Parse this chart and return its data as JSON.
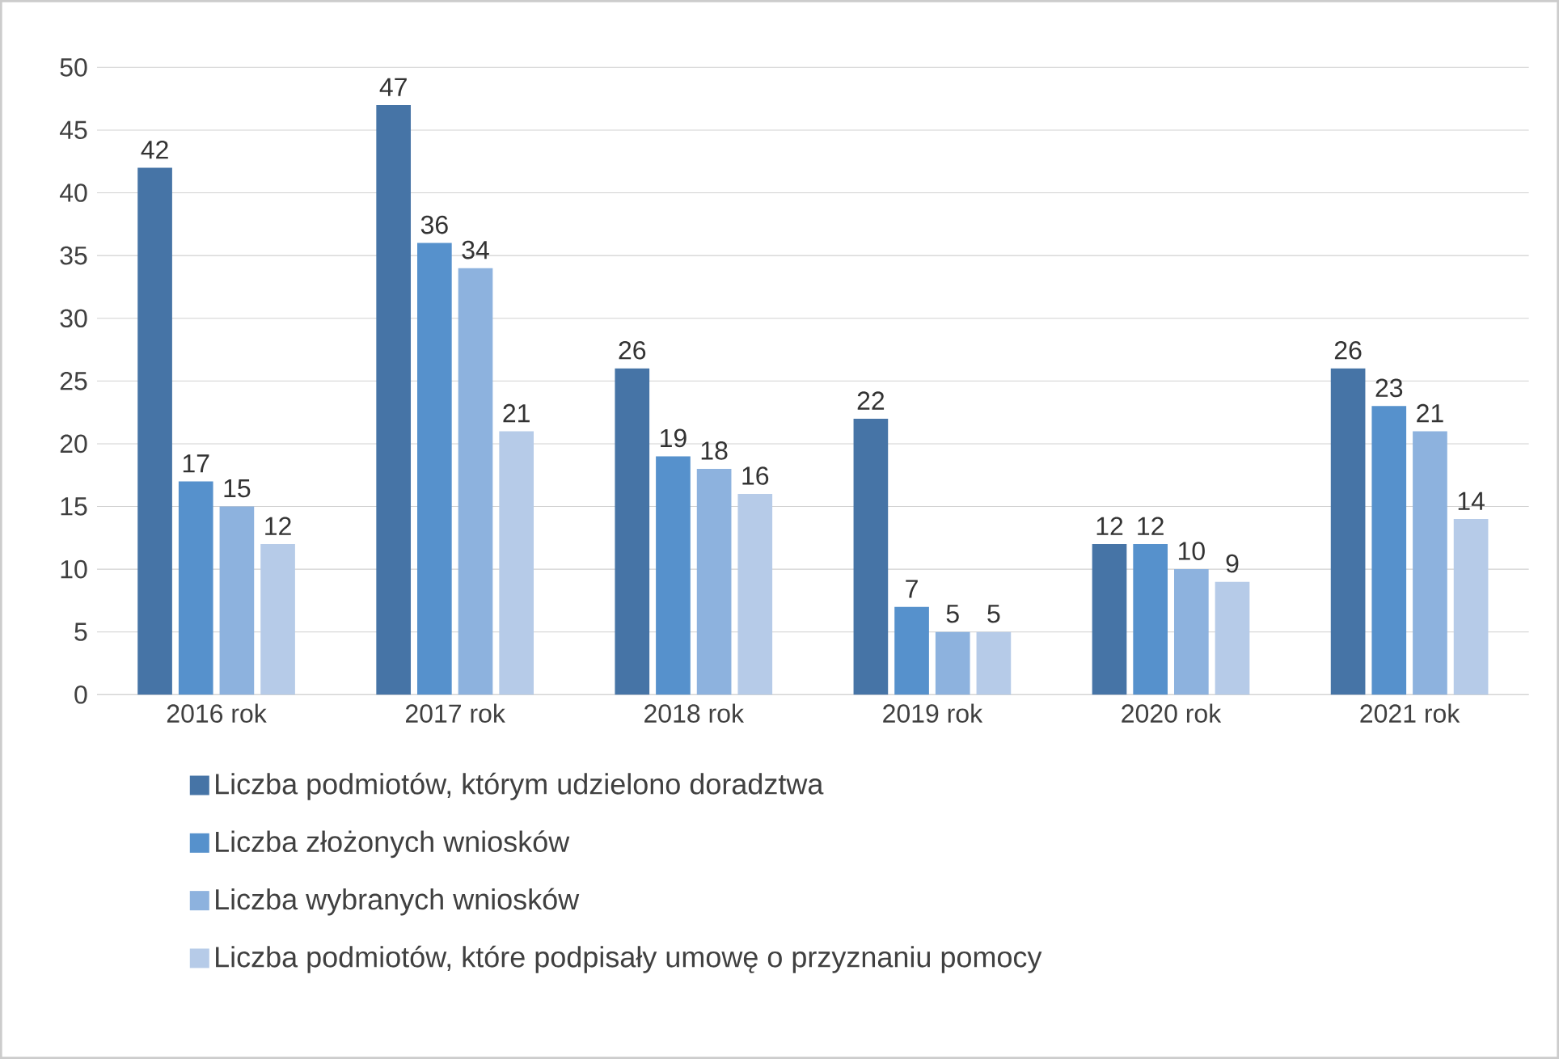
{
  "chart_data": {
    "type": "bar",
    "categories": [
      "2016 rok",
      "2017 rok",
      "2018 rok",
      "2019 rok",
      "2020 rok",
      "2021 rok"
    ],
    "series": [
      {
        "name": "Liczba podmiotów, którym udzielono doradztwa",
        "color": "#4674a6",
        "values": [
          42,
          47,
          26,
          22,
          12,
          26
        ]
      },
      {
        "name": "Liczba złożonych wniosków",
        "color": "#5691cc",
        "values": [
          17,
          36,
          19,
          7,
          12,
          23
        ]
      },
      {
        "name": "Liczba wybranych wniosków",
        "color": "#8db2de",
        "values": [
          15,
          34,
          18,
          5,
          10,
          21
        ]
      },
      {
        "name": "Liczba podmiotów, które podpisały umowę o przyznaniu pomocy",
        "color": "#b6cbe8",
        "values": [
          12,
          21,
          16,
          5,
          9,
          14
        ]
      }
    ],
    "ylim": [
      0,
      50
    ],
    "yticks": [
      0,
      5,
      10,
      15,
      20,
      25,
      30,
      35,
      40,
      45,
      50
    ],
    "grid": "y",
    "legend": "bottom",
    "data_labels": true
  }
}
